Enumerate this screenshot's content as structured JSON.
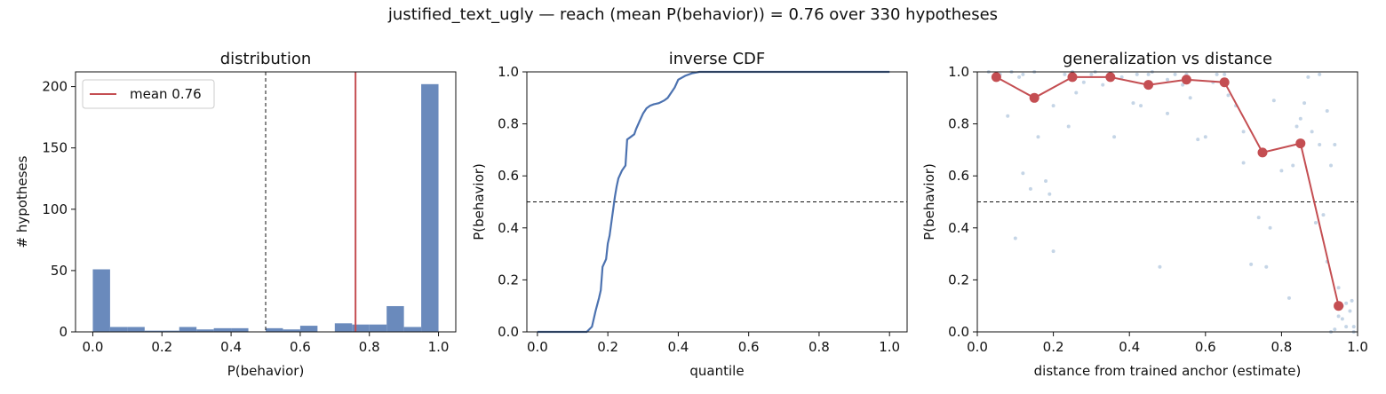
{
  "figure": {
    "suptitle": "justified_text_ugly  —  reach (mean P(behavior)) = 0.76  over 330 hypotheses"
  },
  "colors": {
    "blue": "#4c72b0",
    "bar_blue": "#6a8abc",
    "red": "#c44e52",
    "scatter": "#b7cbe0"
  },
  "chart_data": [
    {
      "type": "bar",
      "title": "distribution",
      "xlabel": "P(behavior)",
      "ylabel": "# hypotheses",
      "xlim": [
        -0.05,
        1.05
      ],
      "ylim": [
        0,
        212
      ],
      "xticks": [
        "0.0",
        "0.2",
        "0.4",
        "0.6",
        "0.8",
        "1.0"
      ],
      "yticks": [
        "0",
        "50",
        "100",
        "150",
        "200"
      ],
      "bin_width": 0.05,
      "bins": [
        {
          "x0": 0.0,
          "value": 51
        },
        {
          "x0": 0.05,
          "value": 4
        },
        {
          "x0": 0.1,
          "value": 4
        },
        {
          "x0": 0.15,
          "value": 1
        },
        {
          "x0": 0.2,
          "value": 1
        },
        {
          "x0": 0.25,
          "value": 4
        },
        {
          "x0": 0.3,
          "value": 2
        },
        {
          "x0": 0.35,
          "value": 3
        },
        {
          "x0": 0.4,
          "value": 3
        },
        {
          "x0": 0.5,
          "value": 3
        },
        {
          "x0": 0.55,
          "value": 2
        },
        {
          "x0": 0.6,
          "value": 5
        },
        {
          "x0": 0.7,
          "value": 7
        },
        {
          "x0": 0.75,
          "value": 6
        },
        {
          "x0": 0.8,
          "value": 6
        },
        {
          "x0": 0.85,
          "value": 21
        },
        {
          "x0": 0.9,
          "value": 4
        },
        {
          "x0": 0.95,
          "value": 202
        }
      ],
      "threshold_line": 0.5,
      "mean_line": 0.76,
      "legend": {
        "label": "mean 0.76",
        "placement": "upper-left"
      }
    },
    {
      "type": "line",
      "title": "inverse CDF",
      "xlabel": "quantile",
      "ylabel": "P(behavior)",
      "xlim": [
        -0.03,
        1.05
      ],
      "ylim": [
        0,
        1
      ],
      "xticks": [
        "0.0",
        "0.2",
        "0.4",
        "0.6",
        "0.8",
        "1.0"
      ],
      "yticks": [
        "0.0",
        "0.2",
        "0.4",
        "0.6",
        "0.8",
        "1.0"
      ],
      "threshold_line": 0.5,
      "points": [
        [
          0.0,
          0.0
        ],
        [
          0.14,
          0.0
        ],
        [
          0.155,
          0.02
        ],
        [
          0.165,
          0.08
        ],
        [
          0.175,
          0.13
        ],
        [
          0.18,
          0.16
        ],
        [
          0.185,
          0.25
        ],
        [
          0.195,
          0.28
        ],
        [
          0.2,
          0.34
        ],
        [
          0.205,
          0.37
        ],
        [
          0.21,
          0.42
        ],
        [
          0.215,
          0.47
        ],
        [
          0.22,
          0.52
        ],
        [
          0.225,
          0.56
        ],
        [
          0.23,
          0.59
        ],
        [
          0.24,
          0.62
        ],
        [
          0.25,
          0.64
        ],
        [
          0.255,
          0.74
        ],
        [
          0.265,
          0.75
        ],
        [
          0.275,
          0.76
        ],
        [
          0.28,
          0.78
        ],
        [
          0.29,
          0.81
        ],
        [
          0.3,
          0.84
        ],
        [
          0.31,
          0.86
        ],
        [
          0.32,
          0.87
        ],
        [
          0.33,
          0.875
        ],
        [
          0.345,
          0.88
        ],
        [
          0.36,
          0.89
        ],
        [
          0.37,
          0.9
        ],
        [
          0.38,
          0.92
        ],
        [
          0.39,
          0.94
        ],
        [
          0.4,
          0.97
        ],
        [
          0.42,
          0.985
        ],
        [
          0.44,
          0.995
        ],
        [
          0.46,
          1.0
        ],
        [
          1.0,
          1.0
        ]
      ]
    },
    {
      "type": "scatter",
      "title": "generalization vs distance",
      "xlabel": "distance from trained anchor (estimate)",
      "ylabel": "P(behavior)",
      "xlim": [
        0,
        1
      ],
      "ylim": [
        0,
        1
      ],
      "xticks": [
        "0.0",
        "0.2",
        "0.4",
        "0.6",
        "0.8",
        "1.0"
      ],
      "yticks": [
        "0.0",
        "0.2",
        "0.4",
        "0.6",
        "0.8",
        "1.0"
      ],
      "threshold_line": 0.5,
      "binned_means": [
        [
          0.05,
          0.98
        ],
        [
          0.15,
          0.9
        ],
        [
          0.25,
          0.98
        ],
        [
          0.35,
          0.98
        ],
        [
          0.45,
          0.95
        ],
        [
          0.55,
          0.97
        ],
        [
          0.65,
          0.96
        ],
        [
          0.75,
          0.69
        ],
        [
          0.85,
          0.725
        ],
        [
          0.95,
          0.1
        ]
      ],
      "scatter_points": [
        [
          0.03,
          1.0
        ],
        [
          0.06,
          0.99
        ],
        [
          0.09,
          1.0
        ],
        [
          0.11,
          0.98
        ],
        [
          0.12,
          0.61
        ],
        [
          0.14,
          0.55
        ],
        [
          0.16,
          0.75
        ],
        [
          0.18,
          0.58
        ],
        [
          0.19,
          0.53
        ],
        [
          0.2,
          0.87
        ],
        [
          0.23,
          0.99
        ],
        [
          0.24,
          0.79
        ],
        [
          0.26,
          0.92
        ],
        [
          0.28,
          0.96
        ],
        [
          0.31,
          1.0
        ],
        [
          0.33,
          0.95
        ],
        [
          0.36,
          0.75
        ],
        [
          0.38,
          0.98
        ],
        [
          0.41,
          0.88
        ],
        [
          0.43,
          0.87
        ],
        [
          0.46,
          1.0
        ],
        [
          0.48,
          0.25
        ],
        [
          0.5,
          0.97
        ],
        [
          0.52,
          0.99
        ],
        [
          0.54,
          0.95
        ],
        [
          0.56,
          0.9
        ],
        [
          0.58,
          0.74
        ],
        [
          0.6,
          0.75
        ],
        [
          0.63,
          0.99
        ],
        [
          0.66,
          0.91
        ],
        [
          0.68,
          0.87
        ],
        [
          0.7,
          0.77
        ],
        [
          0.72,
          0.26
        ],
        [
          0.74,
          0.44
        ],
        [
          0.76,
          0.25
        ],
        [
          0.77,
          0.4
        ],
        [
          0.8,
          0.62
        ],
        [
          0.82,
          0.13
        ],
        [
          0.83,
          0.64
        ],
        [
          0.85,
          0.82
        ],
        [
          0.86,
          0.88
        ],
        [
          0.88,
          0.77
        ],
        [
          0.89,
          0.42
        ],
        [
          0.9,
          0.72
        ],
        [
          0.91,
          0.45
        ],
        [
          0.92,
          0.27
        ],
        [
          0.93,
          0.64
        ],
        [
          0.94,
          0.72
        ],
        [
          0.95,
          0.17
        ],
        [
          0.96,
          0.05
        ],
        [
          0.97,
          0.11
        ],
        [
          0.98,
          0.08
        ],
        [
          0.99,
          0.02
        ],
        [
          0.985,
          0.12
        ],
        [
          0.94,
          0.01
        ],
        [
          0.9,
          0.99
        ],
        [
          0.84,
          0.79
        ],
        [
          0.08,
          0.83
        ],
        [
          0.1,
          0.36
        ],
        [
          0.12,
          0.99
        ],
        [
          0.2,
          0.31
        ],
        [
          0.3,
          0.99
        ],
        [
          0.42,
          0.99
        ],
        [
          0.5,
          0.84
        ],
        [
          0.62,
          0.96
        ],
        [
          0.7,
          0.65
        ],
        [
          0.95,
          0.06
        ],
        [
          0.97,
          0.02
        ],
        [
          0.99,
          0.0
        ],
        [
          0.93,
          0.0
        ],
        [
          0.96,
          0.1
        ],
        [
          0.78,
          0.89
        ],
        [
          0.92,
          0.85
        ],
        [
          0.87,
          0.98
        ],
        [
          0.35,
          0.99
        ],
        [
          0.55,
          0.99
        ],
        [
          0.65,
          0.99
        ],
        [
          0.25,
          1.0
        ],
        [
          0.15,
          1.0
        ],
        [
          0.45,
          0.99
        ]
      ]
    }
  ]
}
